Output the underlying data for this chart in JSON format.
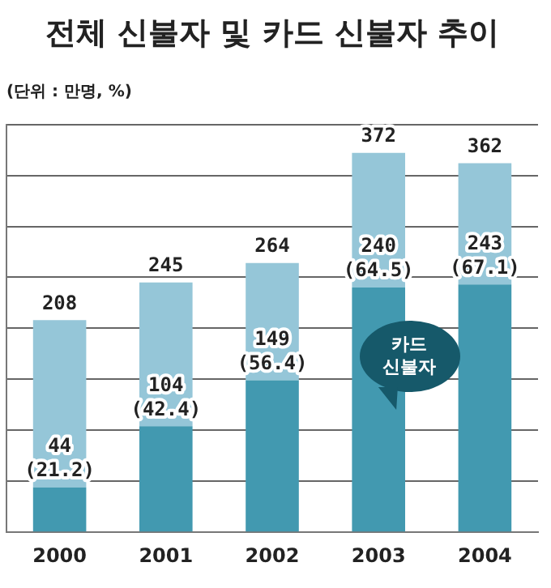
{
  "chart_data": {
    "type": "bar",
    "title": "전체 신불자 및 카드 신불자 추이",
    "subtitle": "(단위 : 만명, %)",
    "categories": [
      "2000",
      "2001",
      "2002",
      "2003",
      "2004"
    ],
    "stacked": true,
    "series": [
      {
        "name": "카드 신불자",
        "color": "#4299b0",
        "values": [
          44,
          104,
          149,
          240,
          243
        ],
        "value_labels": [
          "44 (21.2)",
          "104 (42.4)",
          "149 (56.4)",
          "240 (64.5)",
          "243 (67.1)"
        ]
      },
      {
        "color": "#95c6d8",
        "values": [
          164,
          141,
          115,
          132,
          119
        ]
      }
    ],
    "totals": [
      "208",
      "245",
      "264",
      "372",
      "362"
    ],
    "ylim": [
      0,
      400
    ],
    "yticks": [
      {
        "value": 0,
        "label": null
      },
      {
        "value": 50,
        "label": null
      },
      {
        "value": 100,
        "label": null
      },
      {
        "value": 150,
        "label": null
      },
      {
        "value": 200,
        "label": null
      },
      {
        "value": 250,
        "label": null
      },
      {
        "value": 300,
        "label": null
      },
      {
        "value": 350,
        "label": null
      },
      {
        "value": 400,
        "label": null
      }
    ],
    "grid": "y",
    "tick_labels": "x",
    "legend": false
  }
}
